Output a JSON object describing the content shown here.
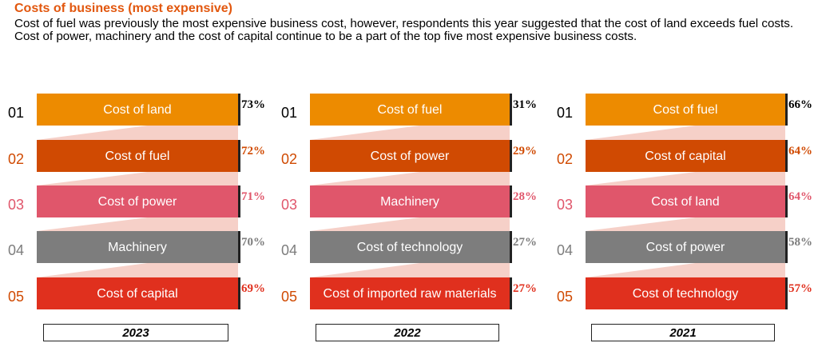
{
  "header": {
    "title": "Costs of business (most expensive)",
    "description": "Cost of fuel was previously the most expensive business cost, however, respondents this year suggested that the cost of land exceeds fuel costs. Cost of power, machinery and the cost of capital continue to be a part of the top five most expensive business costs."
  },
  "colors": {
    "rank_1": "#ed8b00",
    "rank_2": "#d04a02",
    "rank_3": "#e0566b",
    "rank_4": "#7d7d7d",
    "rank_5": "#e0301e",
    "connector": "#f6d0c8",
    "title": "#e2570e"
  },
  "ranks": [
    "01",
    "02",
    "03",
    "04",
    "05"
  ],
  "chart_data": {
    "type": "table",
    "columns": [
      {
        "year": "2023",
        "items": [
          {
            "label": "Cost of land",
            "value": "73%"
          },
          {
            "label": "Cost of fuel",
            "value": "72%"
          },
          {
            "label": "Cost of power",
            "value": "71%"
          },
          {
            "label": "Machinery",
            "value": "70%"
          },
          {
            "label": "Cost of capital",
            "value": "69%"
          }
        ]
      },
      {
        "year": "2022",
        "items": [
          {
            "label": "Cost of fuel",
            "value": "31%"
          },
          {
            "label": "Cost of power",
            "value": "29%"
          },
          {
            "label": "Machinery",
            "value": "28%"
          },
          {
            "label": "Cost of technology",
            "value": "27%"
          },
          {
            "label": "Cost of imported raw materials",
            "value": "27%"
          }
        ]
      },
      {
        "year": "2021",
        "items": [
          {
            "label": "Cost of fuel",
            "value": "66%"
          },
          {
            "label": "Cost of capital",
            "value": "64%"
          },
          {
            "label": "Cost of land",
            "value": "64%"
          },
          {
            "label": "Cost of power",
            "value": "58%"
          },
          {
            "label": "Cost of technology",
            "value": "57%"
          }
        ]
      }
    ]
  }
}
